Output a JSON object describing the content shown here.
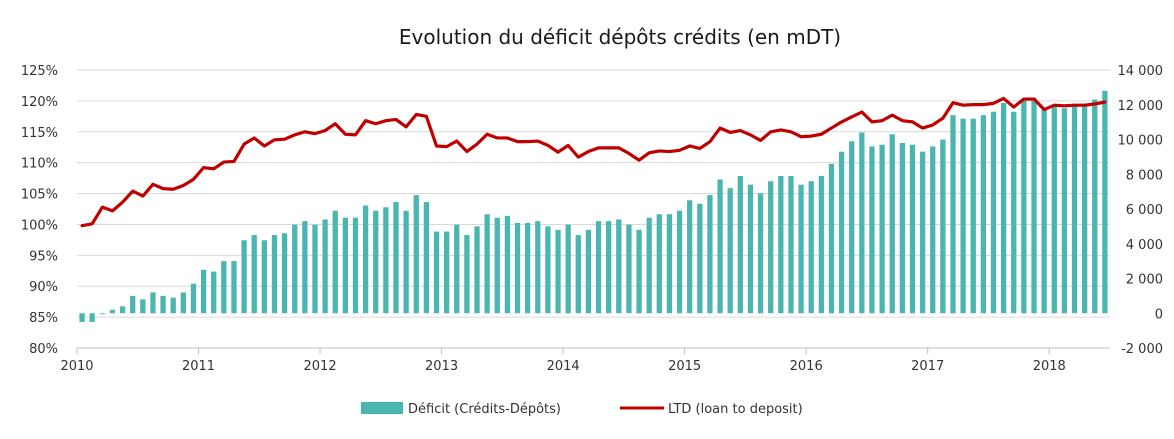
{
  "chart_data": {
    "type": "bar+line",
    "title": "Evolution du déficit dépôts crédits (en mDT)",
    "xlim": [
      2010,
      2018.5
    ],
    "x_ticks": [
      2010,
      2011,
      2012,
      2013,
      2014,
      2015,
      2016,
      2017,
      2018
    ],
    "x_tick_labels": [
      "2010",
      "2011",
      "2012",
      "2013",
      "2014",
      "2015",
      "2016",
      "2017",
      "2018"
    ],
    "y_left": {
      "ylim": [
        80,
        125
      ],
      "ticks": [
        80,
        85,
        90,
        95,
        100,
        105,
        110,
        115,
        120,
        125
      ],
      "tick_labels": [
        "80%",
        "85%",
        "90%",
        "95%",
        "100%",
        "105%",
        "110%",
        "115%",
        "120%",
        "125%"
      ]
    },
    "y_right": {
      "ylim": [
        -2000,
        14000
      ],
      "ticks": [
        -2000,
        0,
        2000,
        4000,
        6000,
        8000,
        10000,
        12000,
        14000
      ],
      "tick_labels": [
        "-2 000",
        "0",
        "2 000",
        "4 000",
        "6 000",
        "8 000",
        "10 000",
        "12 000",
        "14 000"
      ]
    },
    "grid": true,
    "legend_position": "bottom",
    "colors": {
      "bars": "#4BB5B0",
      "line": "#C00000"
    },
    "series": [
      {
        "name": "Déficit (Crédits-Dépôts)",
        "axis": "right",
        "type": "bar",
        "start": 2010.0,
        "step": 0.08333,
        "values": [
          -500,
          -500,
          -50,
          200,
          400,
          1000,
          800,
          1200,
          1000,
          900,
          1200,
          1700,
          2500,
          2400,
          3000,
          3000,
          4200,
          4500,
          4200,
          4500,
          4600,
          5100,
          5300,
          5100,
          5400,
          5900,
          5500,
          5500,
          6200,
          5900,
          6100,
          6400,
          5900,
          6800,
          6400,
          4700,
          4700,
          5100,
          4500,
          5000,
          5700,
          5500,
          5600,
          5200,
          5200,
          5300,
          5000,
          4800,
          5100,
          4500,
          4800,
          5300,
          5300,
          5400,
          5100,
          4800,
          5500,
          5700,
          5700,
          5900,
          6500,
          6300,
          6800,
          7700,
          7200,
          7900,
          7400,
          6900,
          7600,
          7900,
          7900,
          7400,
          7600,
          7900,
          8600,
          9300,
          9900,
          10400,
          9600,
          9700,
          10300,
          9800,
          9700,
          9300,
          9600,
          10000,
          11400,
          11200,
          11200,
          11400,
          11600,
          12100,
          11600,
          12300,
          12400,
          11700,
          12000,
          11800,
          12000,
          12000,
          12300,
          12800
        ]
      },
      {
        "name": "LTD (loan to deposit)",
        "axis": "left",
        "type": "line",
        "start": 2010.0,
        "step": 0.08333,
        "values": [
          99.8,
          100.1,
          102.8,
          102.2,
          103.6,
          105.4,
          104.6,
          106.5,
          105.8,
          105.7,
          106.3,
          107.3,
          109.2,
          109.0,
          110.1,
          110.2,
          113.0,
          114.0,
          112.7,
          113.7,
          113.8,
          114.5,
          115.0,
          114.7,
          115.2,
          116.3,
          114.6,
          114.5,
          116.8,
          116.3,
          116.8,
          117.0,
          115.8,
          117.8,
          117.5,
          112.7,
          112.6,
          113.5,
          111.8,
          113.0,
          114.6,
          114.0,
          114.0,
          113.4,
          113.4,
          113.5,
          112.8,
          111.7,
          112.8,
          110.9,
          111.8,
          112.4,
          112.4,
          112.4,
          111.5,
          110.4,
          111.6,
          111.9,
          111.8,
          112.0,
          112.7,
          112.3,
          113.4,
          115.6,
          114.9,
          115.2,
          114.5,
          113.6,
          115.0,
          115.3,
          115.0,
          114.2,
          114.3,
          114.6,
          115.6,
          116.6,
          117.4,
          118.2,
          116.6,
          116.8,
          117.7,
          116.8,
          116.6,
          115.6,
          116.1,
          117.2,
          119.7,
          119.3,
          119.4,
          119.4,
          119.6,
          120.4,
          119.0,
          120.3,
          120.3,
          118.6,
          119.3,
          119.2,
          119.3,
          119.3,
          119.5,
          119.8
        ]
      }
    ]
  }
}
